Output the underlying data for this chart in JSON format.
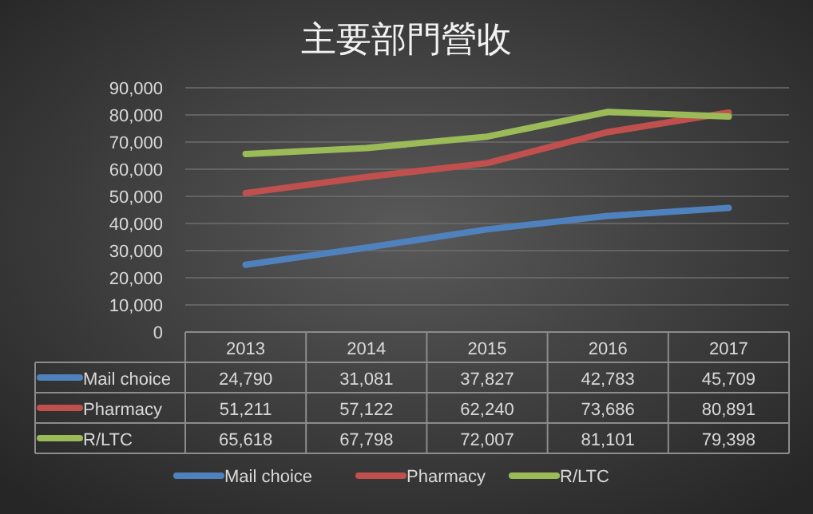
{
  "chart_data": {
    "type": "line",
    "title": "主要部門營收",
    "categories": [
      "2013",
      "2014",
      "2015",
      "2016",
      "2017"
    ],
    "series": [
      {
        "name": "Mail choice",
        "color": "#4f81bd",
        "values": [
          24790,
          31081,
          37827,
          42783,
          45709
        ],
        "value_labels": [
          "24,790",
          "31,081",
          "37,827",
          "42,783",
          "45,709"
        ]
      },
      {
        "name": "Pharmacy",
        "color": "#c0504d",
        "values": [
          51211,
          57122,
          62240,
          73686,
          80891
        ],
        "value_labels": [
          "51,211",
          "57,122",
          "62,240",
          "73,686",
          "80,891"
        ]
      },
      {
        "name": "R/LTC",
        "color": "#9bbb59",
        "values": [
          65618,
          67798,
          72007,
          81101,
          79398
        ],
        "value_labels": [
          "65,618",
          "67,798",
          "72,007",
          "81,101",
          "79,398"
        ]
      }
    ],
    "ylim": [
      0,
      90000
    ],
    "yticks": [
      {
        "value": 0,
        "label": "0"
      },
      {
        "value": 10000,
        "label": "10,000"
      },
      {
        "value": 20000,
        "label": "20,000"
      },
      {
        "value": 30000,
        "label": "30,000"
      },
      {
        "value": 40000,
        "label": "40,000"
      },
      {
        "value": 50000,
        "label": "50,000"
      },
      {
        "value": 60000,
        "label": "60,000"
      },
      {
        "value": 70000,
        "label": "70,000"
      },
      {
        "value": 80000,
        "label": "80,000"
      },
      {
        "value": 90000,
        "label": "90,000"
      }
    ],
    "grid": "y",
    "legend": "bottom"
  }
}
